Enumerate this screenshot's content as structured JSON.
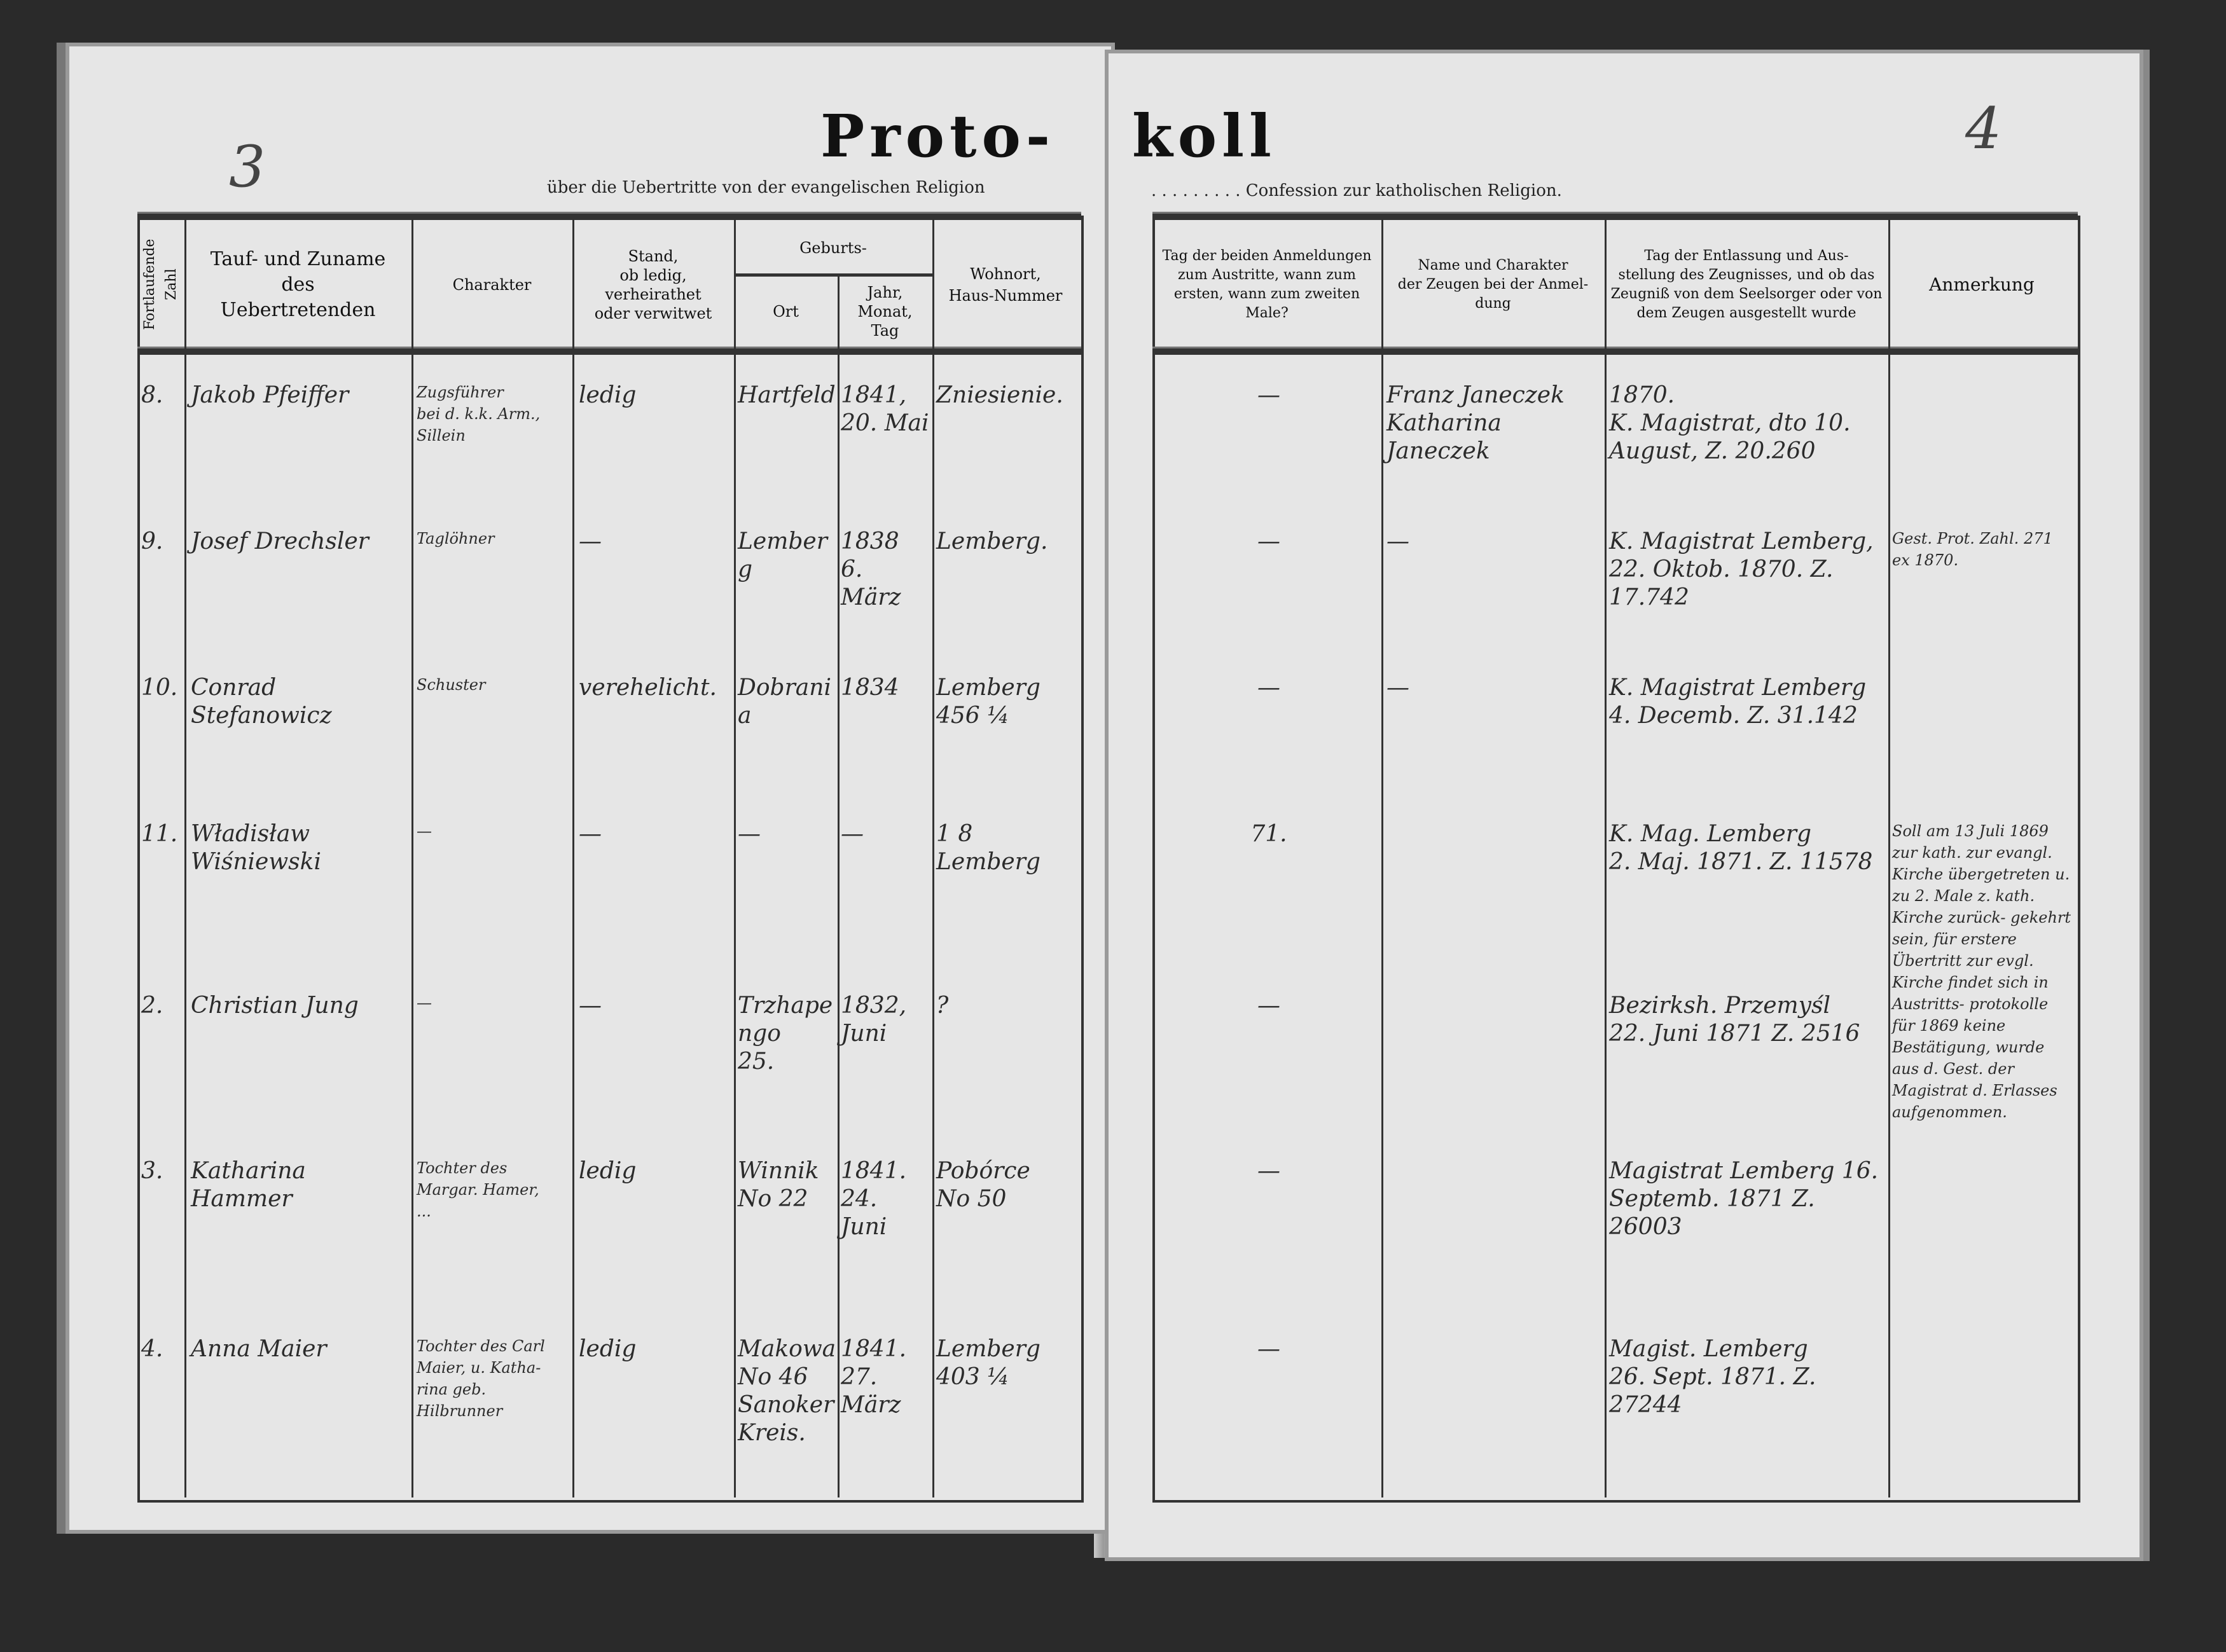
{
  "left_page": {
    "page_number": "3",
    "title": "Proto-",
    "subtitle": "über die Uebertritte von der evangelischen Religion",
    "headers": {
      "number": "Fortlaufende Zahl",
      "name": "Tauf- und Zuname\ndes\nUebertretenden",
      "charakter": "Charakter",
      "stand": "Stand,\nob ledig, verheirathet\noder verwitwet",
      "geburts": "Geburts-",
      "ort": "Ort",
      "datum": "Jahr,\nMonat,\nTag",
      "wohnort": "Wohnort,\nHaus-Nummer"
    }
  },
  "right_page": {
    "page_number": "4",
    "title": "koll",
    "subtitle": ". . . . . . . . . Confession zur katholischen Religion.",
    "headers": {
      "anmeldung": "Tag der beiden Anmeldungen\nzum Austritte, wann zum\nersten, wann zum zweiten\nMale?",
      "zeugen": "Name und Charakter\nder Zeugen bei der Anmel-\ndung",
      "entlassung": "Tag der Entlassung und Aus-\nstellung des Zeugnisses, und ob das\nZeugniß von dem Seelsorger oder von\ndem Zeugen ausgestellt wurde",
      "anmerkung": "Anmerkung"
    }
  },
  "entries": [
    {
      "number": "8.",
      "name": "Jakob Pfeiffer",
      "charakter": "Zugsführer\nbei d. k.k. Arm.,\nSillein",
      "stand": "ledig",
      "ort": "Hartfeld",
      "datum": "1841,\n20. Mai",
      "wohnort": "Zniesienie.",
      "anmeldung": "—",
      "zeugen": "Franz Janeczek\nKatharina Janeczek",
      "entlassung": "1870.\nK. Magistrat, dto 10.\nAugust, Z. 20.260",
      "anmerkung": ""
    },
    {
      "number": "9.",
      "name": "Josef Drechsler",
      "charakter": "Taglöhner",
      "stand": "—",
      "ort": "Lemberg",
      "datum": "1838\n6. März",
      "wohnort": "Lemberg.",
      "anmeldung": "—",
      "zeugen": "—",
      "entlassung": "K. Magistrat Lemberg,\n22. Oktob. 1870. Z. 17.742",
      "anmerkung": "Gest. Prot. Zahl. 271\nex 1870."
    },
    {
      "number": "10.",
      "name": "Conrad Stefanowicz",
      "charakter": "Schuster",
      "stand": "verehelicht.",
      "ort": "Dobrania",
      "datum": "1834",
      "wohnort": "Lemberg\n456 ¼",
      "anmeldung": "—",
      "zeugen": "—",
      "entlassung": "K. Magistrat Lemberg\n4. Decemb. Z. 31.142",
      "anmerkung": ""
    },
    {
      "number": "11.",
      "name": "Władisław Wiśniewski",
      "charakter": "—",
      "stand": "—",
      "ort": "—",
      "datum": "—",
      "wohnort": "1 8\nLemberg",
      "anmeldung": "71.",
      "zeugen": "",
      "entlassung": "K. Mag. Lemberg\n2. Maj. 1871. Z. 11578",
      "anmerkung": "Soll am 13 Juli 1869 zur\nkath. zur evangl. Kirche\nübergetreten u. zu 2. Male\nz. kath. Kirche zurück-\ngekehrt sein, für erstere\nÜbertritt zur evgl. Kirche\nfindet sich in Austritts-\nprotokolle für 1869 keine\nBestätigung, wurde aus\nd. Gest. der Magistrat\nd. Erlasses aufgenommen."
    },
    {
      "number": "2.",
      "name": "Christian Jung",
      "charakter": "—",
      "stand": "—",
      "ort": "Trzhapengo\n25.",
      "datum": "1832,\nJuni",
      "wohnort": "?",
      "anmeldung": "—",
      "zeugen": "",
      "entlassung": "Bezirksh. Przemyśl\n22. Juni 1871 Z. 2516",
      "anmerkung": ""
    },
    {
      "number": "3.",
      "name": "Katharina Hammer",
      "charakter": "Tochter des\nMargar. Hamer,\n...",
      "stand": "ledig",
      "ort": "Winnik\nNo 22",
      "datum": "1841.\n24. Juni",
      "wohnort": "Pobórce\nNo 50",
      "anmeldung": "—",
      "zeugen": "",
      "entlassung": "Magistrat Lemberg 16.\nSeptemb. 1871 Z. 26003",
      "anmerkung": ""
    },
    {
      "number": "4.",
      "name": "Anna Maier",
      "charakter": "Tochter des Carl\nMaier, u. Katha-\nrina geb. Hilbrunner",
      "stand": "ledig",
      "ort": "Makowa\nNo 46\nSanoker\nKreis.",
      "datum": "1841.\n27. März",
      "wohnort": "Lemberg\n403 ¼",
      "anmeldung": "—",
      "zeugen": "",
      "entlassung": "Magist. Lemberg\n26. Sept. 1871. Z. 27244",
      "anmerkung": ""
    }
  ]
}
